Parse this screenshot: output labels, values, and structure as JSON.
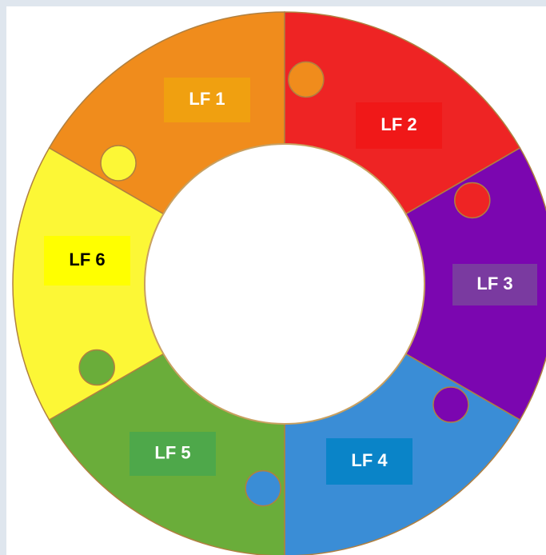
{
  "segments": [
    {
      "label": "LF 1"
    },
    {
      "label": "LF 2"
    },
    {
      "label": "LF 3"
    },
    {
      "label": "LF 4"
    },
    {
      "label": "LF 5"
    },
    {
      "label": "LF 6"
    }
  ]
}
